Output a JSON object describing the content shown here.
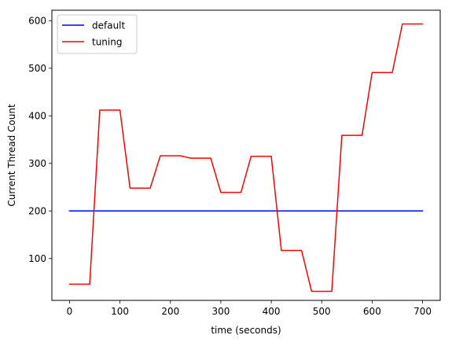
{
  "chart_data": {
    "type": "line",
    "title": "",
    "xlabel": "time (seconds)",
    "ylabel": "Current Thread Count",
    "xlim": [
      -35,
      735
    ],
    "ylim": [
      12,
      622
    ],
    "x_ticks": [
      0,
      100,
      200,
      300,
      400,
      500,
      600,
      700
    ],
    "y_ticks": [
      100,
      200,
      300,
      400,
      500,
      600
    ],
    "grid": false,
    "legend_position": "upper-left",
    "series": [
      {
        "name": "default",
        "color": "#0000ff",
        "points": [
          [
            0,
            200
          ],
          [
            700,
            200
          ]
        ]
      },
      {
        "name": "tuning",
        "color": "#ff0000",
        "points": [
          [
            0,
            46
          ],
          [
            40,
            46
          ],
          [
            60,
            412
          ],
          [
            100,
            412
          ],
          [
            120,
            248
          ],
          [
            160,
            248
          ],
          [
            180,
            316
          ],
          [
            220,
            316
          ],
          [
            240,
            311
          ],
          [
            280,
            311
          ],
          [
            300,
            239
          ],
          [
            340,
            239
          ],
          [
            360,
            315
          ],
          [
            400,
            315
          ],
          [
            420,
            117
          ],
          [
            460,
            117
          ],
          [
            480,
            31
          ],
          [
            520,
            31
          ],
          [
            540,
            359
          ],
          [
            580,
            359
          ],
          [
            600,
            491
          ],
          [
            640,
            491
          ],
          [
            660,
            593
          ],
          [
            700,
            593
          ]
        ]
      }
    ]
  }
}
